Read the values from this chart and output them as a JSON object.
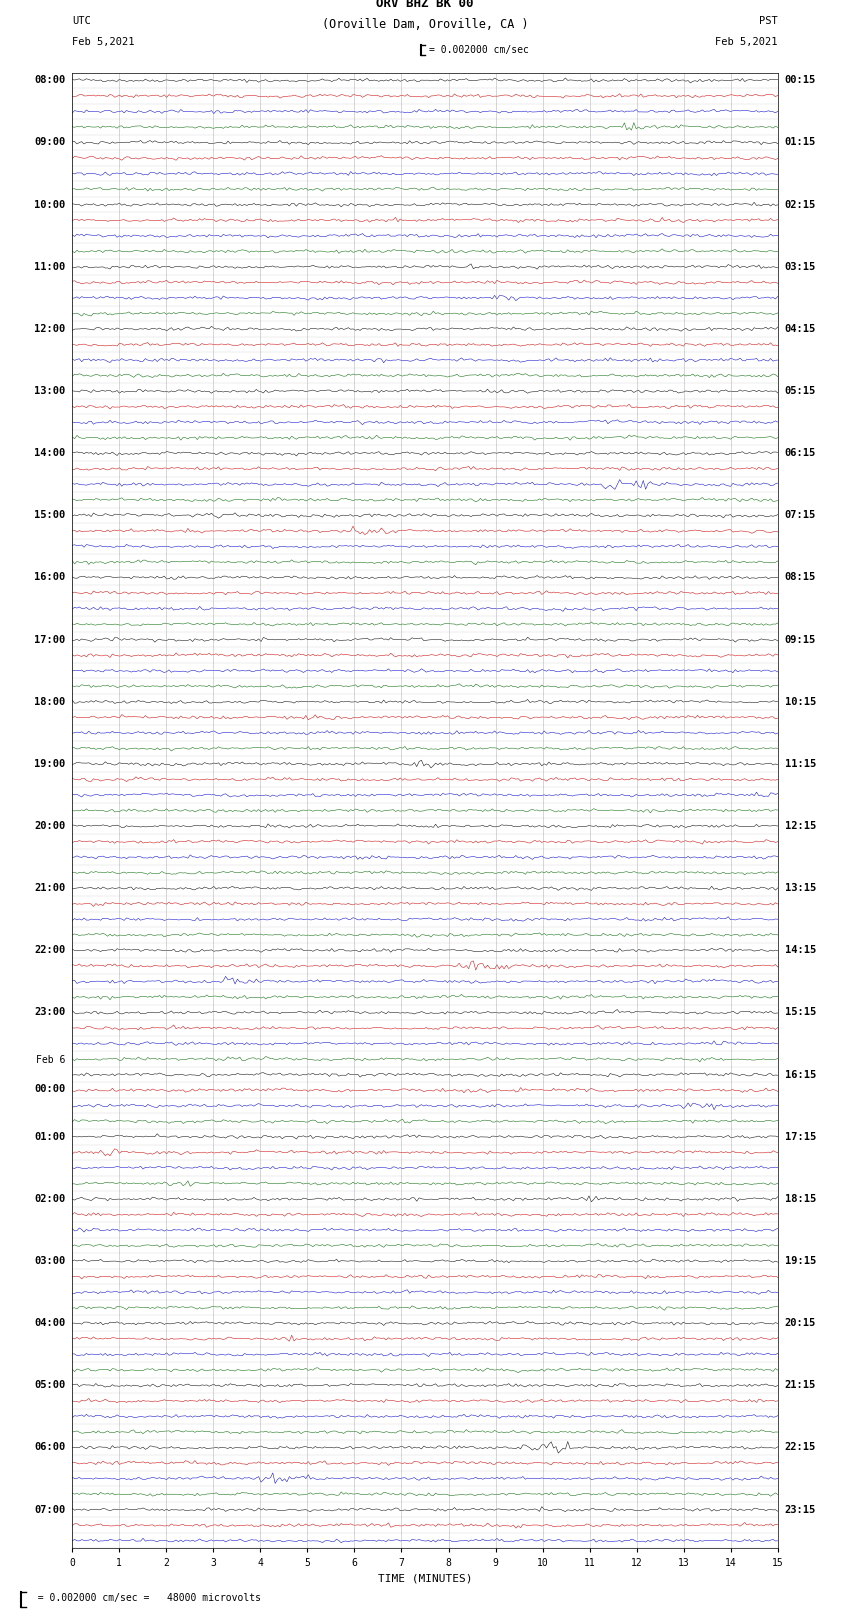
{
  "title_line1": "ORV BHZ BK 00",
  "title_line2": "(Oroville Dam, Oroville, CA )",
  "scale_label": "= 0.002000 cm/sec",
  "bottom_label": "= 0.002000 cm/sec =   48000 microvolts",
  "xlabel": "TIME (MINUTES)",
  "left_header": "UTC",
  "right_header": "PST",
  "left_date": "Feb 5,2021",
  "right_date": "Feb 5,2021",
  "bg_color": "#ffffff",
  "trace_colors": [
    "#000000",
    "#cc0000",
    "#0000cc",
    "#006600"
  ],
  "grid_color": "#888888",
  "label_color": "#000000",
  "utc_labels": [
    "08:00",
    "",
    "",
    "",
    "09:00",
    "",
    "",
    "",
    "10:00",
    "",
    "",
    "",
    "11:00",
    "",
    "",
    "",
    "12:00",
    "",
    "",
    "",
    "13:00",
    "",
    "",
    "",
    "14:00",
    "",
    "",
    "",
    "15:00",
    "",
    "",
    "",
    "16:00",
    "",
    "",
    "",
    "17:00",
    "",
    "",
    "",
    "18:00",
    "",
    "",
    "",
    "19:00",
    "",
    "",
    "",
    "20:00",
    "",
    "",
    "",
    "21:00",
    "",
    "",
    "",
    "22:00",
    "",
    "",
    "",
    "23:00",
    "",
    "",
    "",
    "Feb 6|00:00",
    "",
    "",
    "",
    "01:00",
    "",
    "",
    "",
    "02:00",
    "",
    "",
    "",
    "03:00",
    "",
    "",
    "",
    "04:00",
    "",
    "",
    "",
    "05:00",
    "",
    "",
    "",
    "06:00",
    "",
    "",
    "",
    "07:00",
    "",
    ""
  ],
  "pst_labels": [
    "00:15",
    "",
    "",
    "",
    "01:15",
    "",
    "",
    "",
    "02:15",
    "",
    "",
    "",
    "03:15",
    "",
    "",
    "",
    "04:15",
    "",
    "",
    "",
    "05:15",
    "",
    "",
    "",
    "06:15",
    "",
    "",
    "",
    "07:15",
    "",
    "",
    "",
    "08:15",
    "",
    "",
    "",
    "09:15",
    "",
    "",
    "",
    "10:15",
    "",
    "",
    "",
    "11:15",
    "",
    "",
    "",
    "12:15",
    "",
    "",
    "",
    "13:15",
    "",
    "",
    "",
    "14:15",
    "",
    "",
    "",
    "15:15",
    "",
    "",
    "",
    "16:15",
    "",
    "",
    "",
    "17:15",
    "",
    "",
    "",
    "18:15",
    "",
    "",
    "",
    "19:15",
    "",
    "",
    "",
    "20:15",
    "",
    "",
    "",
    "21:15",
    "",
    "",
    "",
    "22:15",
    "",
    "",
    "",
    "23:15",
    "",
    ""
  ],
  "n_rows": 95,
  "n_minutes": 15,
  "noise_amplitude": 0.12,
  "xmin": 0,
  "xmax": 15,
  "title_fontsize": 9,
  "label_fontsize": 7.5,
  "tick_fontsize": 7,
  "axis_label_fontsize": 8
}
